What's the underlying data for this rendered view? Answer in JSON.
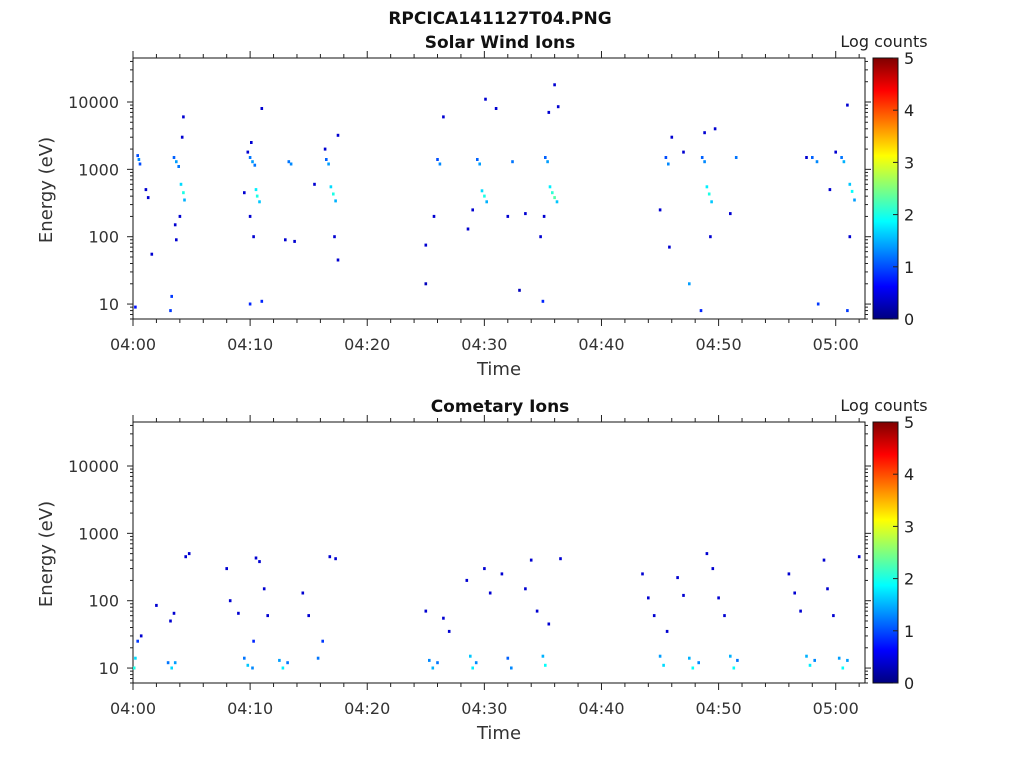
{
  "figure_title": "RPCICA141127T04.PNG",
  "colormap": [
    "#00007f",
    "#0000ff",
    "#007fff",
    "#00ffff",
    "#7fff7f",
    "#ffff00",
    "#ff7f00",
    "#ff0000",
    "#7f0000"
  ],
  "chart_data": [
    {
      "type": "heatmap",
      "title": "Solar Wind Ions",
      "xlabel": "Time",
      "ylabel": "Energy (eV)",
      "colorbar_label": "Log counts",
      "yscale": "log",
      "ylim": [
        6,
        45000
      ],
      "yticks": [
        10,
        100,
        1000,
        10000
      ],
      "ytick_labels": [
        "10",
        "100",
        "1000",
        "10000"
      ],
      "xlim_minutes": [
        0,
        62.5
      ],
      "xticks_minutes": [
        0,
        10,
        20,
        30,
        40,
        50,
        60
      ],
      "xtick_labels": [
        "04:00",
        "04:10",
        "04:20",
        "04:30",
        "04:40",
        "04:50",
        "05:00"
      ],
      "clim": [
        0,
        5
      ],
      "cticks": [
        "0",
        "1",
        "2",
        "3",
        "4",
        "5"
      ],
      "cells": [
        [
          0.4,
          1600,
          1.0
        ],
        [
          0.5,
          1400,
          1.3
        ],
        [
          0.6,
          1200,
          1.0
        ],
        [
          1.1,
          500,
          0.4
        ],
        [
          1.3,
          380,
          0.4
        ],
        [
          1.6,
          55,
          0.4
        ],
        [
          3.5,
          1500,
          1.1
        ],
        [
          3.7,
          1300,
          1.4
        ],
        [
          3.9,
          1100,
          1.2
        ],
        [
          4.1,
          600,
          1.7
        ],
        [
          4.3,
          450,
          2.0
        ],
        [
          4.4,
          350,
          1.5
        ],
        [
          4.2,
          3000,
          0.4
        ],
        [
          4.3,
          6000,
          0.4
        ],
        [
          4.0,
          200,
          0.4
        ],
        [
          3.7,
          90,
          0.4
        ],
        [
          3.6,
          150,
          0.4
        ],
        [
          10.0,
          1500,
          1.2
        ],
        [
          10.2,
          1300,
          1.4
        ],
        [
          10.4,
          1150,
          1.2
        ],
        [
          10.5,
          500,
          1.8
        ],
        [
          10.6,
          400,
          2.0
        ],
        [
          10.8,
          330,
          1.6
        ],
        [
          9.8,
          1800,
          0.4
        ],
        [
          10.1,
          2500,
          0.4
        ],
        [
          11.0,
          8000,
          0.4
        ],
        [
          9.5,
          450,
          0.4
        ],
        [
          10.0,
          200,
          0.4
        ],
        [
          10.3,
          100,
          0.4
        ],
        [
          13.3,
          1300,
          1.2
        ],
        [
          13.5,
          1200,
          1.3
        ],
        [
          13.0,
          90,
          0.4
        ],
        [
          13.8,
          85,
          0.4
        ],
        [
          15.5,
          600,
          0.4
        ],
        [
          16.5,
          1400,
          1.1
        ],
        [
          16.7,
          1200,
          1.4
        ],
        [
          16.9,
          550,
          1.7
        ],
        [
          17.1,
          430,
          2.0
        ],
        [
          17.3,
          340,
          1.5
        ],
        [
          16.4,
          2000,
          0.4
        ],
        [
          17.5,
          3200,
          0.4
        ],
        [
          17.2,
          100,
          0.4
        ],
        [
          17.5,
          45,
          0.4
        ],
        [
          26.0,
          1400,
          1.0
        ],
        [
          26.2,
          1200,
          1.3
        ],
        [
          25.7,
          200,
          0.4
        ],
        [
          26.5,
          6000,
          0.4
        ],
        [
          25.0,
          75,
          0.4
        ],
        [
          29.4,
          1400,
          1.1
        ],
        [
          29.6,
          1200,
          1.4
        ],
        [
          29.8,
          480,
          1.7
        ],
        [
          30.0,
          400,
          2.0
        ],
        [
          30.2,
          330,
          1.5
        ],
        [
          30.1,
          11000,
          0.4
        ],
        [
          29.0,
          250,
          0.4
        ],
        [
          28.6,
          130,
          0.4
        ],
        [
          31.0,
          8000,
          0.4
        ],
        [
          32.4,
          1300,
          1.2
        ],
        [
          32.0,
          200,
          0.4
        ],
        [
          35.2,
          1500,
          1.1
        ],
        [
          35.4,
          1300,
          1.4
        ],
        [
          35.6,
          550,
          1.8
        ],
        [
          35.8,
          450,
          2.1
        ],
        [
          36.0,
          380,
          2.3
        ],
        [
          36.2,
          330,
          1.6
        ],
        [
          35.5,
          7000,
          0.4
        ],
        [
          36.0,
          18000,
          0.4
        ],
        [
          36.3,
          8500,
          0.4
        ],
        [
          35.1,
          200,
          0.4
        ],
        [
          34.8,
          100,
          0.4
        ],
        [
          33.5,
          220,
          0.4
        ],
        [
          45.5,
          1500,
          1.0
        ],
        [
          45.7,
          1200,
          1.3
        ],
        [
          46.0,
          3000,
          0.4
        ],
        [
          47.0,
          1800,
          0.4
        ],
        [
          45.0,
          250,
          0.4
        ],
        [
          45.8,
          70,
          0.4
        ],
        [
          48.6,
          1500,
          1.1
        ],
        [
          48.8,
          1300,
          1.3
        ],
        [
          49.0,
          550,
          1.8
        ],
        [
          49.2,
          430,
          2.0
        ],
        [
          49.4,
          330,
          1.6
        ],
        [
          48.8,
          3500,
          0.4
        ],
        [
          49.7,
          4000,
          0.4
        ],
        [
          49.3,
          100,
          0.4
        ],
        [
          51.5,
          1500,
          1.2
        ],
        [
          51.0,
          220,
          0.4
        ],
        [
          57.5,
          1500,
          0.4
        ],
        [
          58.0,
          1500,
          1.1
        ],
        [
          58.4,
          1300,
          1.3
        ],
        [
          59.5,
          500,
          0.4
        ],
        [
          60.5,
          1500,
          1.2
        ],
        [
          60.7,
          1300,
          1.5
        ],
        [
          61.2,
          600,
          1.6
        ],
        [
          61.4,
          470,
          1.9
        ],
        [
          61.6,
          350,
          1.4
        ],
        [
          61.0,
          9000,
          0.4
        ],
        [
          60.0,
          1800,
          0.4
        ],
        [
          61.2,
          100,
          0.4
        ],
        [
          0.2,
          9,
          0.7
        ],
        [
          3.2,
          8,
          0.9
        ],
        [
          3.3,
          13,
          0.9
        ],
        [
          10.0,
          10,
          0.8
        ],
        [
          11.0,
          11,
          0.8
        ],
        [
          25.0,
          20,
          0.3
        ],
        [
          33.0,
          16,
          0.3
        ],
        [
          35.0,
          11,
          0.8
        ],
        [
          47.5,
          20,
          1.4
        ],
        [
          48.5,
          8,
          0.8
        ],
        [
          58.5,
          10,
          0.9
        ],
        [
          61.0,
          8,
          0.9
        ]
      ]
    },
    {
      "type": "heatmap",
      "title": "Cometary Ions",
      "xlabel": "Time",
      "ylabel": "Energy (eV)",
      "colorbar_label": "Log counts",
      "yscale": "log",
      "ylim": [
        6,
        45000
      ],
      "yticks": [
        10,
        100,
        1000,
        10000
      ],
      "ytick_labels": [
        "10",
        "100",
        "1000",
        "10000"
      ],
      "xlim_minutes": [
        0,
        62.5
      ],
      "xticks_minutes": [
        0,
        10,
        20,
        30,
        40,
        50,
        60
      ],
      "xtick_labels": [
        "04:00",
        "04:10",
        "04:20",
        "04:30",
        "04:40",
        "04:50",
        "05:00"
      ],
      "clim": [
        0,
        5
      ],
      "cticks": [
        "0",
        "1",
        "2",
        "3",
        "4",
        "5"
      ],
      "cells": [
        [
          0.1,
          10,
          2.0
        ],
        [
          0.2,
          14,
          1.7
        ],
        [
          0.4,
          25,
          0.9
        ],
        [
          0.7,
          30,
          0.4
        ],
        [
          2.0,
          85,
          0.4
        ],
        [
          3.0,
          12,
          1.2
        ],
        [
          3.3,
          10,
          1.7
        ],
        [
          3.6,
          12,
          1.4
        ],
        [
          3.2,
          50,
          0.4
        ],
        [
          3.5,
          65,
          0.4
        ],
        [
          4.5,
          450,
          0.4
        ],
        [
          4.8,
          500,
          0.4
        ],
        [
          8.0,
          300,
          0.4
        ],
        [
          8.3,
          100,
          0.4
        ],
        [
          9.0,
          65,
          0.4
        ],
        [
          9.5,
          14,
          1.2
        ],
        [
          9.8,
          11,
          1.6
        ],
        [
          10.2,
          10,
          1.3
        ],
        [
          10.5,
          430,
          0.4
        ],
        [
          10.8,
          380,
          0.4
        ],
        [
          11.2,
          150,
          0.4
        ],
        [
          11.5,
          60,
          0.4
        ],
        [
          10.3,
          25,
          0.8
        ],
        [
          12.5,
          13,
          1.4
        ],
        [
          12.8,
          10,
          1.8
        ],
        [
          13.2,
          12,
          1.2
        ],
        [
          14.5,
          130,
          0.4
        ],
        [
          15.0,
          60,
          0.4
        ],
        [
          15.8,
          14,
          1.2
        ],
        [
          16.2,
          25,
          0.9
        ],
        [
          16.8,
          450,
          0.4
        ],
        [
          17.3,
          420,
          0.4
        ],
        [
          25.0,
          70,
          0.4
        ],
        [
          25.3,
          13,
          1.3
        ],
        [
          25.6,
          10,
          1.5
        ],
        [
          26.0,
          12,
          1.2
        ],
        [
          26.5,
          55,
          0.4
        ],
        [
          27.0,
          35,
          0.4
        ],
        [
          28.5,
          200,
          0.4
        ],
        [
          28.8,
          15,
          1.6
        ],
        [
          29.0,
          10,
          1.8
        ],
        [
          29.3,
          12,
          1.3
        ],
        [
          30.0,
          300,
          0.4
        ],
        [
          30.5,
          130,
          0.4
        ],
        [
          31.5,
          250,
          0.4
        ],
        [
          32.0,
          14,
          1.1
        ],
        [
          32.3,
          10,
          1.3
        ],
        [
          33.5,
          150,
          0.4
        ],
        [
          34.0,
          400,
          0.4
        ],
        [
          34.5,
          70,
          0.4
        ],
        [
          35.0,
          15,
          1.5
        ],
        [
          35.2,
          11,
          1.9
        ],
        [
          35.5,
          45,
          0.4
        ],
        [
          36.5,
          420,
          0.4
        ],
        [
          43.5,
          250,
          0.4
        ],
        [
          44.0,
          110,
          0.4
        ],
        [
          44.5,
          60,
          0.4
        ],
        [
          45.0,
          15,
          1.4
        ],
        [
          45.3,
          11,
          1.7
        ],
        [
          45.6,
          35,
          0.4
        ],
        [
          46.5,
          220,
          0.4
        ],
        [
          47.0,
          120,
          0.4
        ],
        [
          47.5,
          14,
          1.5
        ],
        [
          47.8,
          10,
          1.9
        ],
        [
          48.3,
          12,
          1.3
        ],
        [
          49.0,
          500,
          0.4
        ],
        [
          49.5,
          300,
          0.4
        ],
        [
          50.0,
          110,
          0.4
        ],
        [
          50.5,
          60,
          0.4
        ],
        [
          51.0,
          15,
          1.5
        ],
        [
          51.3,
          10,
          1.9
        ],
        [
          51.6,
          13,
          1.2
        ],
        [
          56.0,
          250,
          0.4
        ],
        [
          56.5,
          130,
          0.4
        ],
        [
          57.0,
          70,
          0.4
        ],
        [
          57.5,
          15,
          1.5
        ],
        [
          57.8,
          11,
          1.8
        ],
        [
          58.2,
          13,
          1.3
        ],
        [
          59.0,
          400,
          0.4
        ],
        [
          59.3,
          150,
          0.4
        ],
        [
          59.8,
          60,
          0.4
        ],
        [
          60.3,
          14,
          1.4
        ],
        [
          60.6,
          10,
          1.9
        ],
        [
          61.0,
          13,
          1.4
        ],
        [
          62.0,
          450,
          0.4
        ]
      ]
    }
  ]
}
